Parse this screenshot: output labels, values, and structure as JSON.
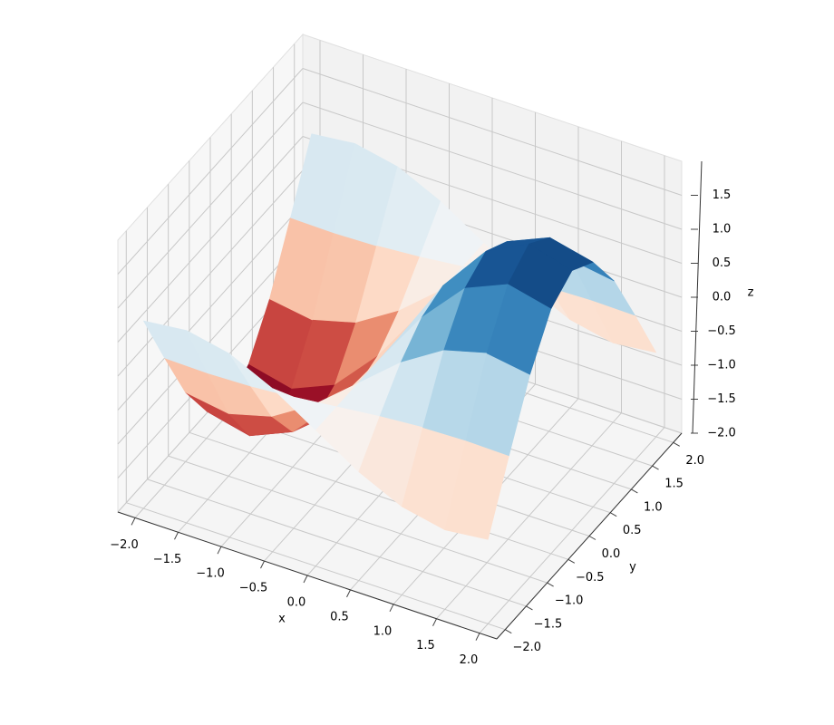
{
  "chart_data": {
    "type": "surface",
    "colormap": "RdBu",
    "x": [
      -2,
      -1.5,
      -1,
      -0.5,
      0,
      0.5,
      1,
      1.5,
      2
    ],
    "y": [
      -2,
      -1.5,
      -1,
      -0.5,
      0,
      0.5,
      1,
      1.5,
      2
    ],
    "z": [
      [
        0.76,
        0.83,
        0.7,
        0.4,
        0,
        -0.4,
        -0.7,
        -0.83,
        -0.76
      ],
      [
        -0.13,
        -0.14,
        -0.12,
        -0.07,
        0,
        0.07,
        0.12,
        0.14,
        0.13
      ],
      [
        -0.98,
        -1.08,
        -0.91,
        -0.52,
        0,
        0.52,
        0.91,
        1.08,
        0.98
      ],
      [
        -1.6,
        -1.75,
        -1.48,
        -0.84,
        0,
        0.84,
        1.48,
        1.75,
        1.6
      ],
      [
        -1.82,
        -2.0,
        -1.68,
        -0.96,
        0,
        0.96,
        1.68,
        2.0,
        1.82
      ],
      [
        -1.6,
        -1.75,
        -1.48,
        -0.84,
        0,
        0.84,
        1.48,
        1.75,
        1.6
      ],
      [
        -0.98,
        -1.08,
        -0.91,
        -0.52,
        0,
        0.52,
        0.91,
        1.08,
        0.98
      ],
      [
        -0.13,
        -0.14,
        -0.12,
        -0.07,
        0,
        0.07,
        0.12,
        0.14,
        0.13
      ],
      [
        0.76,
        0.83,
        0.7,
        0.4,
        0,
        -0.4,
        -0.7,
        -0.83,
        -0.76
      ]
    ],
    "xlabel": "x",
    "ylabel": "y",
    "zlabel": "z",
    "xlim": [
      -2.2,
      2.2
    ],
    "ylim": [
      -2.2,
      2.2
    ],
    "zlim": [
      -2.0,
      2.0
    ],
    "xticks": [
      {
        "value": -2,
        "label": "−2.0"
      },
      {
        "value": -1.5,
        "label": "−1.5"
      },
      {
        "value": -1,
        "label": "−1.0"
      },
      {
        "value": -0.5,
        "label": "−0.5"
      },
      {
        "value": 0,
        "label": "0.0"
      },
      0.5,
      {
        "value": 1,
        "label": "1.0"
      },
      1.5,
      {
        "value": 2,
        "label": "2.0"
      }
    ],
    "yticks": [
      {
        "value": -2,
        "label": "−2.0"
      },
      {
        "value": -1.5,
        "label": "−1.5"
      },
      {
        "value": -1,
        "label": "−1.0"
      },
      {
        "value": -0.5,
        "label": "−0.5"
      },
      {
        "value": 0,
        "label": "0.0"
      },
      0.5,
      {
        "value": 1,
        "label": "1.0"
      },
      1.5,
      {
        "value": 2,
        "label": "2.0"
      }
    ],
    "zticks": [
      {
        "value": -2,
        "label": "−2.0"
      },
      {
        "value": -1.5,
        "label": "−1.5"
      },
      {
        "value": -1,
        "label": "−1.0"
      },
      {
        "value": -0.5,
        "label": "−0.5"
      },
      {
        "value": 0,
        "label": "0.0"
      },
      0.5,
      {
        "value": 1,
        "label": "1.0"
      },
      1.5
    ],
    "grid": true
  }
}
